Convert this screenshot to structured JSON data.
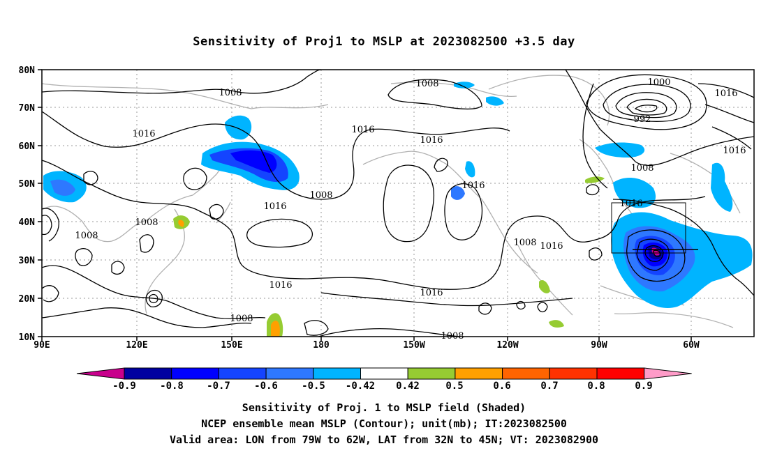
{
  "title": "Sensitivity of Proj1 to MSLP at 2023082500 +3.5 day",
  "lat_labels": [
    "80N",
    "70N",
    "60N",
    "50N",
    "40N",
    "30N",
    "20N",
    "10N"
  ],
  "lon_labels": [
    "90E",
    "120E",
    "150E",
    "180",
    "150W",
    "120W",
    "90W",
    "60W"
  ],
  "contour_labels": [
    "1008",
    "1008",
    "1016",
    "1016",
    "1016",
    "1016",
    "1008",
    "1008",
    "1016",
    "1008",
    "1000",
    "992",
    "1008",
    "1016",
    "1016",
    "1008",
    "1016",
    "1016",
    "1016",
    "1008",
    "1016",
    "1008"
  ],
  "colorbar": {
    "labels": [
      "-0.9",
      "-0.8",
      "-0.7",
      "-0.6",
      "-0.5",
      "-0.42",
      "0.42",
      "0.5",
      "0.6",
      "0.7",
      "0.8",
      "0.9"
    ],
    "colors": [
      "#c8008c",
      "#0000a0",
      "#0000ff",
      "#1444ff",
      "#2e78ff",
      "#00b4ff",
      "#ffffff",
      "#96cc32",
      "#ffa000",
      "#ff6400",
      "#ff3200",
      "#ff0000",
      "#ff9bc8"
    ]
  },
  "caption": {
    "line1": "Sensitivity of Proj. 1 to MSLP field (Shaded)",
    "line2": "NCEP ensemble mean MSLP (Contour); unit(mb); IT:2023082500",
    "line3": "Valid area: LON from 79W to 62W, LAT from 32N to 45N; VT: 2023082900"
  }
}
